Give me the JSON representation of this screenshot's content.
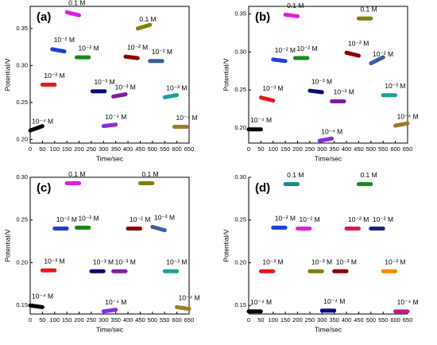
{
  "chart_data": [
    {
      "type": "line",
      "title": "(a)",
      "x_label": "Time/sec",
      "y_label": "Potential/V",
      "box": true,
      "xlim": [
        0,
        650
      ],
      "xticks": [
        0,
        50,
        100,
        150,
        200,
        250,
        300,
        350,
        400,
        450,
        500,
        550,
        600,
        650
      ],
      "ylim": [
        0.195,
        0.38
      ],
      "yticks": [
        {
          "value": 0.2,
          "label": "0.20"
        },
        {
          "value": 0.25,
          "label": "0.25"
        },
        {
          "value": 0.3,
          "label": "0.30"
        },
        {
          "value": 0.35,
          "label": "0.35"
        }
      ],
      "series": [
        {
          "name": "10⁻⁴ M",
          "color": "#000000",
          "x": [
            0,
            50
          ],
          "values": [
            0.212,
            0.218
          ]
        },
        {
          "name": "10⁻³ M",
          "color": "#e31a1c",
          "x": [
            50,
            100
          ],
          "values": [
            0.274,
            0.274
          ]
        },
        {
          "name": "10⁻² M",
          "color": "#1f3fd6",
          "x": [
            90,
            140
          ],
          "values": [
            0.322,
            0.319
          ]
        },
        {
          "name": "0.1 M",
          "color": "#e01ee0",
          "x": [
            150,
            200
          ],
          "values": [
            0.372,
            0.368
          ]
        },
        {
          "name": "10⁻² M",
          "color": "#1a8a1a",
          "x": [
            190,
            240
          ],
          "values": [
            0.311,
            0.311
          ]
        },
        {
          "name": "10⁻³ M",
          "color": "#0a0a7a",
          "x": [
            255,
            305
          ],
          "values": [
            0.265,
            0.265
          ]
        },
        {
          "name": "10⁻⁴ M",
          "color": "#8a2be2",
          "x": [
            300,
            350
          ],
          "values": [
            0.218,
            0.22
          ]
        },
        {
          "name": "10⁻³ M",
          "color": "#7b1fa2",
          "x": [
            340,
            390
          ],
          "values": [
            0.258,
            0.261
          ]
        },
        {
          "name": "10⁻² M",
          "color": "#8b0000",
          "x": [
            390,
            440
          ],
          "values": [
            0.312,
            0.31
          ]
        },
        {
          "name": "0.1 M",
          "color": "#808000",
          "x": [
            440,
            490
          ],
          "values": [
            0.35,
            0.355
          ]
        },
        {
          "name": "10⁻² M",
          "color": "#3a5fa0",
          "x": [
            490,
            540
          ],
          "values": [
            0.306,
            0.306
          ]
        },
        {
          "name": "10⁻³ M",
          "color": "#20a0a0",
          "x": [
            550,
            600
          ],
          "values": [
            0.257,
            0.26
          ]
        },
        {
          "name": "10⁻⁴ M",
          "color": "#a0782a",
          "x": [
            590,
            640
          ],
          "values": [
            0.217,
            0.217
          ]
        }
      ]
    },
    {
      "type": "line",
      "title": "(b)",
      "x_label": "Time/sec",
      "y_label": "Potential/V",
      "box": true,
      "xlim": [
        0,
        650
      ],
      "xticks": [
        0,
        50,
        100,
        150,
        200,
        250,
        300,
        350,
        400,
        450,
        500,
        550,
        600,
        650
      ],
      "ylim": [
        0.18,
        0.36
      ],
      "yticks": [
        {
          "value": 0.2,
          "label": "0.20"
        },
        {
          "value": 0.25,
          "label": "0.25"
        },
        {
          "value": 0.3,
          "label": "0.30"
        },
        {
          "value": 0.35,
          "label": "0.35"
        }
      ],
      "series": [
        {
          "name": "10⁻⁴ M",
          "color": "#000000",
          "x": [
            0,
            50
          ],
          "values": [
            0.198,
            0.198
          ]
        },
        {
          "name": "10⁻³ M",
          "color": "#e31a1c",
          "x": [
            50,
            100
          ],
          "values": [
            0.24,
            0.236
          ]
        },
        {
          "name": "10⁻² M",
          "color": "#1f3fd6",
          "x": [
            100,
            150
          ],
          "values": [
            0.29,
            0.288
          ]
        },
        {
          "name": "0.1 M",
          "color": "#e01ee0",
          "x": [
            150,
            200
          ],
          "values": [
            0.349,
            0.347
          ]
        },
        {
          "name": "10⁻² M",
          "color": "#1a8a1a",
          "x": [
            190,
            240
          ],
          "values": [
            0.292,
            0.292
          ]
        },
        {
          "name": "10⁻³ M",
          "color": "#0a0a7a",
          "x": [
            250,
            300
          ],
          "values": [
            0.249,
            0.247
          ]
        },
        {
          "name": "10⁻⁴ M",
          "color": "#8a2be2",
          "x": [
            290,
            340
          ],
          "values": [
            0.183,
            0.186
          ]
        },
        {
          "name": "10⁻³ M",
          "color": "#7b1fa2",
          "x": [
            340,
            390
          ],
          "values": [
            0.235,
            0.235
          ]
        },
        {
          "name": "10⁻² M",
          "color": "#8b0000",
          "x": [
            400,
            450
          ],
          "values": [
            0.299,
            0.295
          ]
        },
        {
          "name": "0.1 M",
          "color": "#808000",
          "x": [
            450,
            500
          ],
          "values": [
            0.344,
            0.344
          ]
        },
        {
          "name": "10⁻² M",
          "color": "#3a5fa0",
          "x": [
            500,
            550
          ],
          "values": [
            0.285,
            0.293
          ]
        },
        {
          "name": "10⁻³ M",
          "color": "#20a0a0",
          "x": [
            550,
            600
          ],
          "values": [
            0.243,
            0.243
          ]
        },
        {
          "name": "10⁻⁴ M",
          "color": "#a0782a",
          "x": [
            600,
            650
          ],
          "values": [
            0.203,
            0.206
          ]
        }
      ]
    },
    {
      "type": "line",
      "title": "(c)",
      "x_label": "Time/sec",
      "y_label": "Potential/V",
      "box": true,
      "xlim": [
        0,
        650
      ],
      "xticks": [
        0,
        50,
        100,
        150,
        200,
        250,
        300,
        350,
        400,
        450,
        500,
        550,
        600,
        650
      ],
      "ylim": [
        0.14,
        0.3
      ],
      "yticks": [
        0.15,
        {
          "value": 0.2,
          "label": "0.20"
        },
        0.25,
        {
          "value": 0.3,
          "label": "0.30"
        }
      ],
      "series": [
        {
          "name": "10⁻⁴ M",
          "color": "#000000",
          "x": [
            0,
            50
          ],
          "values": [
            0.15,
            0.148
          ]
        },
        {
          "name": "10⁻³ M",
          "color": "#e31a1c",
          "x": [
            50,
            100
          ],
          "values": [
            0.191,
            0.191
          ]
        },
        {
          "name": "10⁻² M",
          "color": "#1f3fd6",
          "x": [
            100,
            150
          ],
          "values": [
            0.24,
            0.24
          ]
        },
        {
          "name": "0.1 M",
          "color": "#e01ee0",
          "x": [
            150,
            200
          ],
          "values": [
            0.293,
            0.293
          ]
        },
        {
          "name": "10⁻² M",
          "color": "#1a8a1a",
          "x": [
            190,
            240
          ],
          "values": [
            0.241,
            0.241
          ]
        },
        {
          "name": "10⁻³ M",
          "color": "#0a0a7a",
          "x": [
            250,
            300
          ],
          "values": [
            0.19,
            0.19
          ]
        },
        {
          "name": "10⁻⁴ M",
          "color": "#8a2be2",
          "x": [
            300,
            350
          ],
          "values": [
            0.143,
            0.145
          ]
        },
        {
          "name": "10⁻³ M",
          "color": "#7b1fa2",
          "x": [
            340,
            390
          ],
          "values": [
            0.19,
            0.19
          ]
        },
        {
          "name": "10⁻² M",
          "color": "#8b0000",
          "x": [
            400,
            450
          ],
          "values": [
            0.24,
            0.24
          ]
        },
        {
          "name": "0.1 M",
          "color": "#808000",
          "x": [
            450,
            500
          ],
          "values": [
            0.293,
            0.293
          ]
        },
        {
          "name": "10⁻² M",
          "color": "#3a5fa0",
          "x": [
            500,
            550
          ],
          "values": [
            0.242,
            0.238
          ]
        },
        {
          "name": "10⁻³ M",
          "color": "#20a0a0",
          "x": [
            550,
            600
          ],
          "values": [
            0.19,
            0.19
          ]
        },
        {
          "name": "10⁻⁴ M",
          "color": "#a0782a",
          "x": [
            600,
            650
          ],
          "values": [
            0.148,
            0.146
          ]
        }
      ]
    },
    {
      "type": "line",
      "title": "(d)",
      "x_label": "Time/sec",
      "y_label": "Potential/V",
      "box": false,
      "xlim": [
        0,
        650
      ],
      "xticks": [
        0,
        50,
        100,
        150,
        200,
        250,
        300,
        350,
        400,
        450,
        500,
        550,
        600,
        650
      ],
      "ylim": [
        0.14,
        0.3
      ],
      "yticks": [
        0.15,
        {
          "value": 0.2,
          "label": "0.20"
        },
        0.25,
        {
          "value": 0.3,
          "label": "0.30"
        }
      ],
      "series": [
        {
          "name": "10⁻⁴ M",
          "color": "#000000",
          "x": [
            0,
            50
          ],
          "values": [
            0.143,
            0.143
          ]
        },
        {
          "name": "10⁻³ M",
          "color": "#e31a1c",
          "x": [
            50,
            100
          ],
          "values": [
            0.19,
            0.19
          ]
        },
        {
          "name": "10⁻² M",
          "color": "#1f3fd6",
          "x": [
            100,
            150
          ],
          "values": [
            0.241,
            0.241
          ]
        },
        {
          "name": "0.1 M",
          "color": "#168a8a",
          "x": [
            150,
            200
          ],
          "values": [
            0.292,
            0.292
          ]
        },
        {
          "name": "10⁻² M",
          "color": "#e01ee0",
          "x": [
            200,
            250
          ],
          "values": [
            0.24,
            0.24
          ]
        },
        {
          "name": "10⁻³ M",
          "color": "#808000",
          "x": [
            250,
            300
          ],
          "values": [
            0.19,
            0.19
          ]
        },
        {
          "name": "10⁻⁴ M",
          "color": "#0a0a7a",
          "x": [
            300,
            350
          ],
          "values": [
            0.144,
            0.144
          ]
        },
        {
          "name": "10⁻³ M",
          "color": "#8b0000",
          "x": [
            350,
            400
          ],
          "values": [
            0.19,
            0.19
          ]
        },
        {
          "name": "10⁻² M",
          "color": "#e31a4c",
          "x": [
            400,
            450
          ],
          "values": [
            0.24,
            0.24
          ]
        },
        {
          "name": "0.1 M",
          "color": "#1a8a1a",
          "x": [
            450,
            500
          ],
          "values": [
            0.292,
            0.292
          ]
        },
        {
          "name": "10⁻² M",
          "color": "#1a237e",
          "x": [
            500,
            550
          ],
          "values": [
            0.24,
            0.24
          ]
        },
        {
          "name": "10⁻³ M",
          "color": "#f08c00",
          "x": [
            550,
            600
          ],
          "values": [
            0.19,
            0.19
          ]
        },
        {
          "name": "10⁻⁴ M",
          "color": "#c2188a",
          "x": [
            600,
            650
          ],
          "values": [
            0.143,
            0.143
          ]
        }
      ]
    }
  ]
}
